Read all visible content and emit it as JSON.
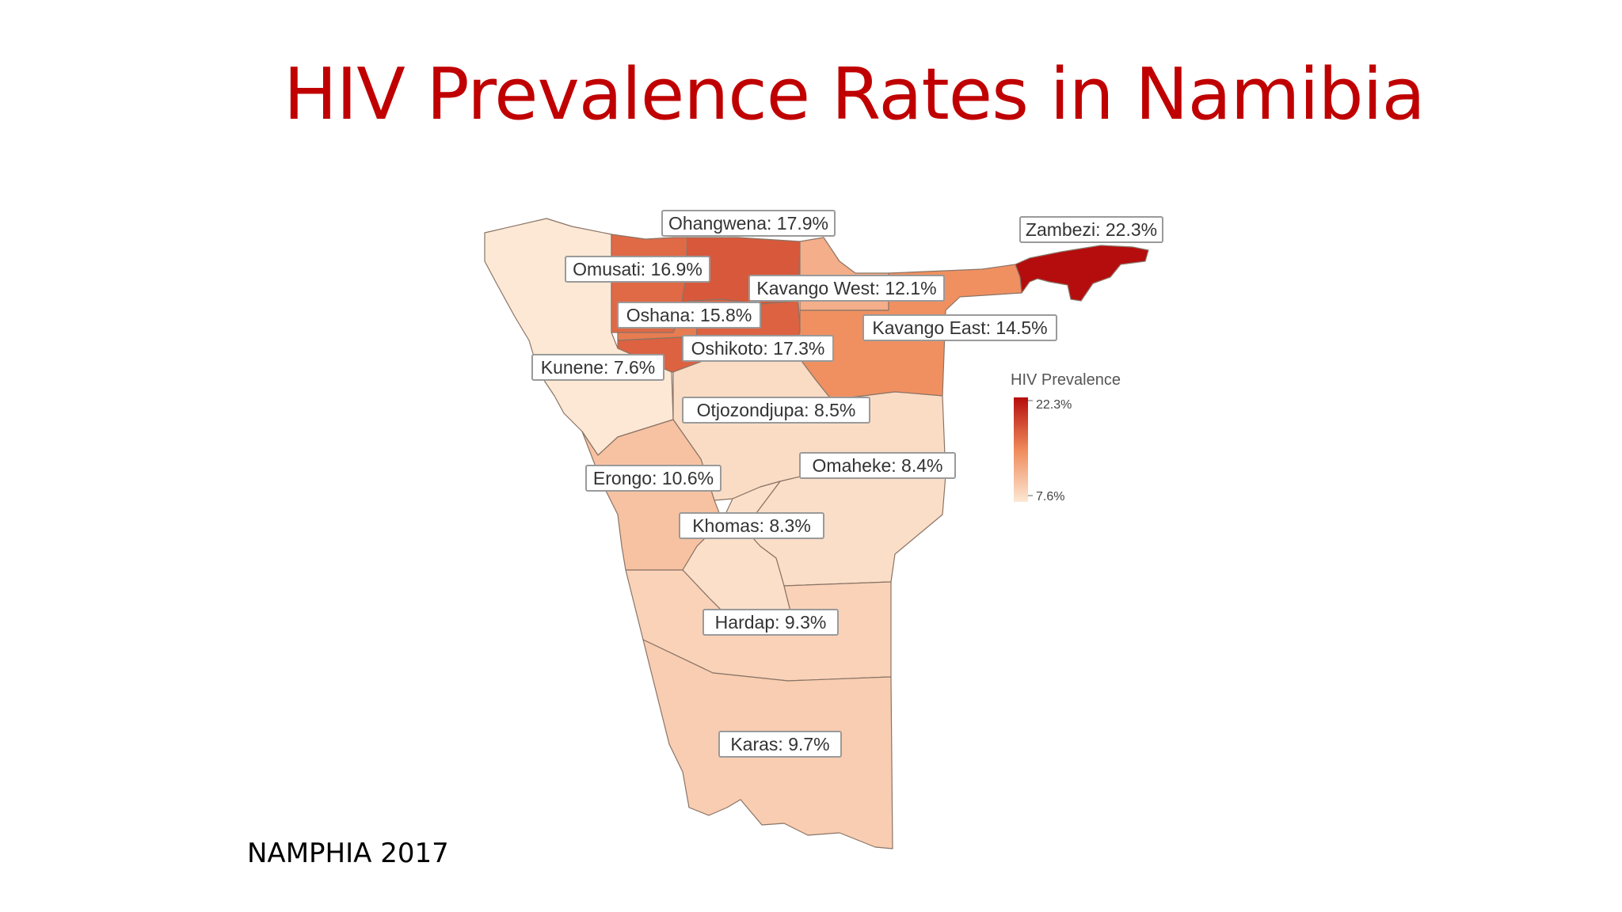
{
  "slide": {
    "title": "HIV Prevalence Rates in Namibia",
    "source": "NAMPHIA 2017"
  },
  "map_data": {
    "type": "choropleth",
    "country": "Namibia",
    "metric": "HIV Prevalence",
    "unit": "%",
    "regions": [
      {
        "name": "Zambezi",
        "value": 22.3,
        "label": "Zambezi: 22.3%"
      },
      {
        "name": "Ohangwena",
        "value": 17.9,
        "label": "Ohangwena: 17.9%"
      },
      {
        "name": "Oshikoto",
        "value": 17.3,
        "label": "Oshikoto: 17.3%"
      },
      {
        "name": "Omusati",
        "value": 16.9,
        "label": "Omusati: 16.9%"
      },
      {
        "name": "Oshana",
        "value": 15.8,
        "label": "Oshana: 15.8%"
      },
      {
        "name": "Kavango East",
        "value": 14.5,
        "label": "Kavango East: 14.5%"
      },
      {
        "name": "Kavango West",
        "value": 12.1,
        "label": "Kavango West: 12.1%"
      },
      {
        "name": "Erongo",
        "value": 10.6,
        "label": "Erongo: 10.6%"
      },
      {
        "name": "Karas",
        "value": 9.7,
        "label": "Karas: 9.7%"
      },
      {
        "name": "Hardap",
        "value": 9.3,
        "label": "Hardap: 9.3%"
      },
      {
        "name": "Otjozondjupa",
        "value": 8.5,
        "label": "Otjozondjupa: 8.5%"
      },
      {
        "name": "Omaheke",
        "value": 8.4,
        "label": "Omaheke: 8.4%"
      },
      {
        "name": "Khomas",
        "value": 8.3,
        "label": "Khomas: 8.3%"
      },
      {
        "name": "Kunene",
        "value": 7.6,
        "label": "Kunene: 7.6%"
      }
    ],
    "legend": {
      "title": "HIV Prevalence",
      "max_label": "22.3%",
      "min_label": "7.6%",
      "min": 7.6,
      "max": 22.3,
      "color_low": "#fce8d4",
      "color_mid": "#ef8a5a",
      "color_high": "#b50d0d"
    }
  }
}
